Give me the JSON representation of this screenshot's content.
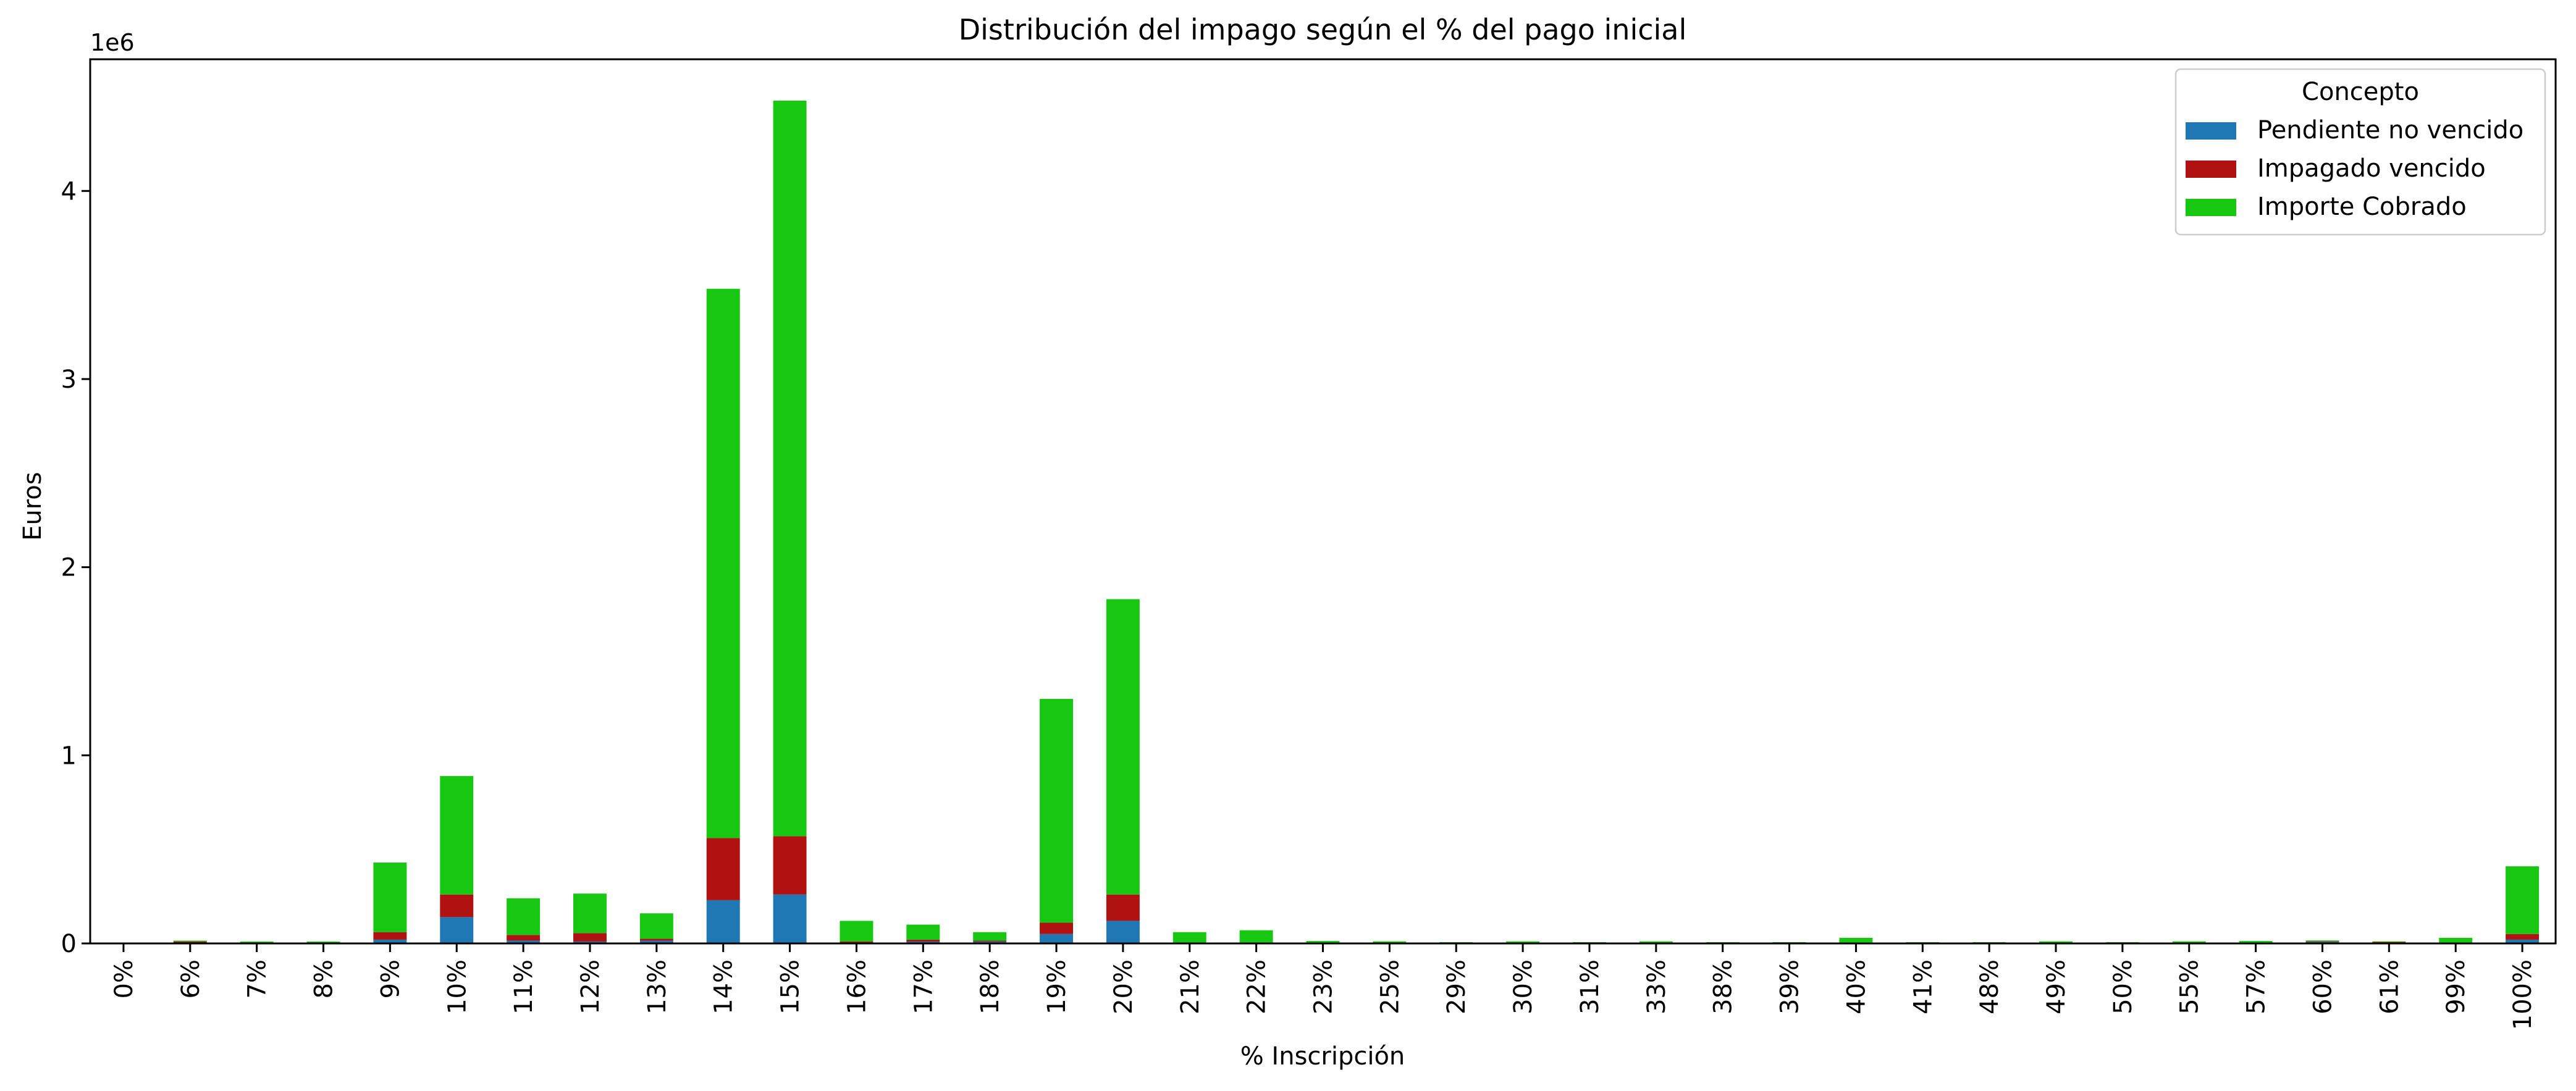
{
  "chart_data": {
    "type": "bar",
    "stacked": true,
    "title": "Distribución del impago según el % del pago inicial",
    "xlabel": "% Inscripción",
    "ylabel": "Euros",
    "y_offset_label": "1e6",
    "ylim": [
      0,
      4700000
    ],
    "yticks": [
      0,
      1000000,
      2000000,
      3000000,
      4000000
    ],
    "ytick_labels": [
      "0",
      "1",
      "2",
      "3",
      "4"
    ],
    "categories": [
      "0%",
      "6%",
      "7%",
      "8%",
      "9%",
      "10%",
      "11%",
      "12%",
      "13%",
      "14%",
      "15%",
      "16%",
      "17%",
      "18%",
      "19%",
      "20%",
      "21%",
      "22%",
      "23%",
      "25%",
      "29%",
      "30%",
      "31%",
      "33%",
      "38%",
      "39%",
      "40%",
      "41%",
      "48%",
      "49%",
      "50%",
      "55%",
      "57%",
      "60%",
      "61%",
      "99%",
      "100%"
    ],
    "legend": {
      "title": "Concepto",
      "position": "top-right"
    },
    "series": [
      {
        "name": "Pendiente no vencido",
        "color": "#1f77b4",
        "values": [
          0,
          3000,
          1000,
          1000,
          20000,
          140000,
          15000,
          10000,
          15000,
          230000,
          260000,
          5000,
          10000,
          10000,
          50000,
          120000,
          2000,
          2000,
          1000,
          1000,
          1000,
          1000,
          1000,
          1000,
          1000,
          1000,
          2000,
          1000,
          1000,
          1000,
          1000,
          1000,
          1000,
          8000,
          5000,
          2000,
          20000
        ]
      },
      {
        "name": "Impagado vencido",
        "color": "#b01111",
        "values": [
          1000,
          7000,
          2000,
          3000,
          40000,
          120000,
          30000,
          45000,
          10000,
          330000,
          310000,
          5000,
          10000,
          5000,
          60000,
          140000,
          3000,
          3000,
          2000,
          2000,
          1000,
          2000,
          1000,
          2000,
          1000,
          1000,
          3000,
          1000,
          1000,
          2000,
          1000,
          2000,
          2000,
          3000,
          3000,
          3000,
          30000
        ]
      },
      {
        "name": "Importe Cobrado",
        "color": "#18c711",
        "values": [
          4000,
          5000,
          7000,
          6000,
          370000,
          630000,
          195000,
          210000,
          135000,
          2920000,
          3910000,
          110000,
          80000,
          45000,
          1190000,
          1570000,
          55000,
          65000,
          10000,
          8000,
          5000,
          8000,
          5000,
          8000,
          5000,
          5000,
          25000,
          5000,
          5000,
          8000,
          5000,
          8000,
          10000,
          5000,
          3000,
          25000,
          360000
        ]
      }
    ]
  }
}
